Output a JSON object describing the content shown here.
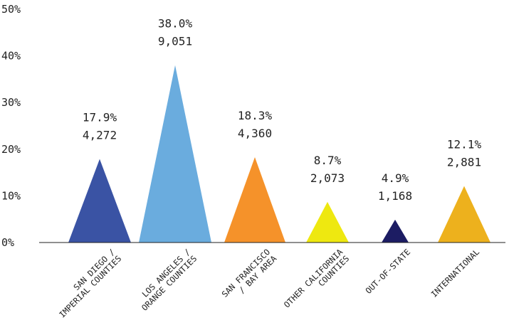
{
  "chart_data": {
    "type": "bar",
    "mark_shape": "triangle",
    "title": "",
    "xlabel": "",
    "ylabel": "",
    "ylim": [
      0,
      50
    ],
    "y_ticks": [
      "0%",
      "10%",
      "20%",
      "30%",
      "40%",
      "50%"
    ],
    "y_tick_values": [
      0,
      10,
      20,
      30,
      40,
      50
    ],
    "grid": false,
    "legend": "none",
    "categories": [
      {
        "lines": [
          "SAN DIEGO /",
          "IMPERIAL COUNTIES"
        ]
      },
      {
        "lines": [
          "LOS ANGELES /",
          "ORANGE COUNTIES"
        ]
      },
      {
        "lines": [
          "SAN FRANCISCO",
          "/ BAY AREA"
        ]
      },
      {
        "lines": [
          "OTHER CALIFORNIA",
          "COUNTIES"
        ]
      },
      {
        "lines": [
          "OUT-OF-STATE"
        ]
      },
      {
        "lines": [
          "INTERNATIONAL"
        ]
      }
    ],
    "values": [
      17.9,
      38.0,
      18.3,
      8.7,
      4.9,
      12.1
    ],
    "percent_labels": [
      "17.9%",
      "38.0%",
      "18.3%",
      "8.7%",
      "4.9%",
      "12.1%"
    ],
    "count_labels": [
      "4,272",
      "9,051",
      "4,360",
      "2,073",
      "1,168",
      "2,881"
    ],
    "counts": [
      4272,
      9051,
      4360,
      2073,
      1168,
      2881
    ],
    "colors": [
      "#3a53a4",
      "#6aacde",
      "#f5922a",
      "#eee810",
      "#1c1c63",
      "#edb11d"
    ]
  }
}
